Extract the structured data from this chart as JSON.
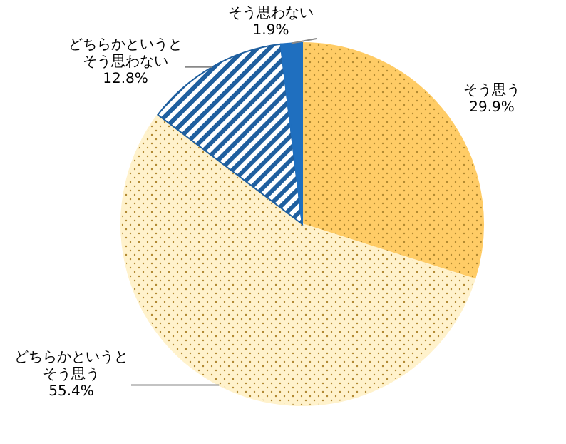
{
  "chart_data": {
    "type": "pie",
    "categories": [
      "そう思う",
      "どちらかというとそう思う",
      "どちらかというとそう思わない",
      "そう思わない"
    ],
    "values": [
      29.9,
      55.4,
      12.8,
      1.9
    ],
    "colors": [
      "#ffcc66",
      "#fff2cc",
      "#1f5f9f",
      "#1f6fbf"
    ],
    "value_labels": [
      "29.9%",
      "55.4%",
      "12.8%",
      "1.9%"
    ]
  }
}
